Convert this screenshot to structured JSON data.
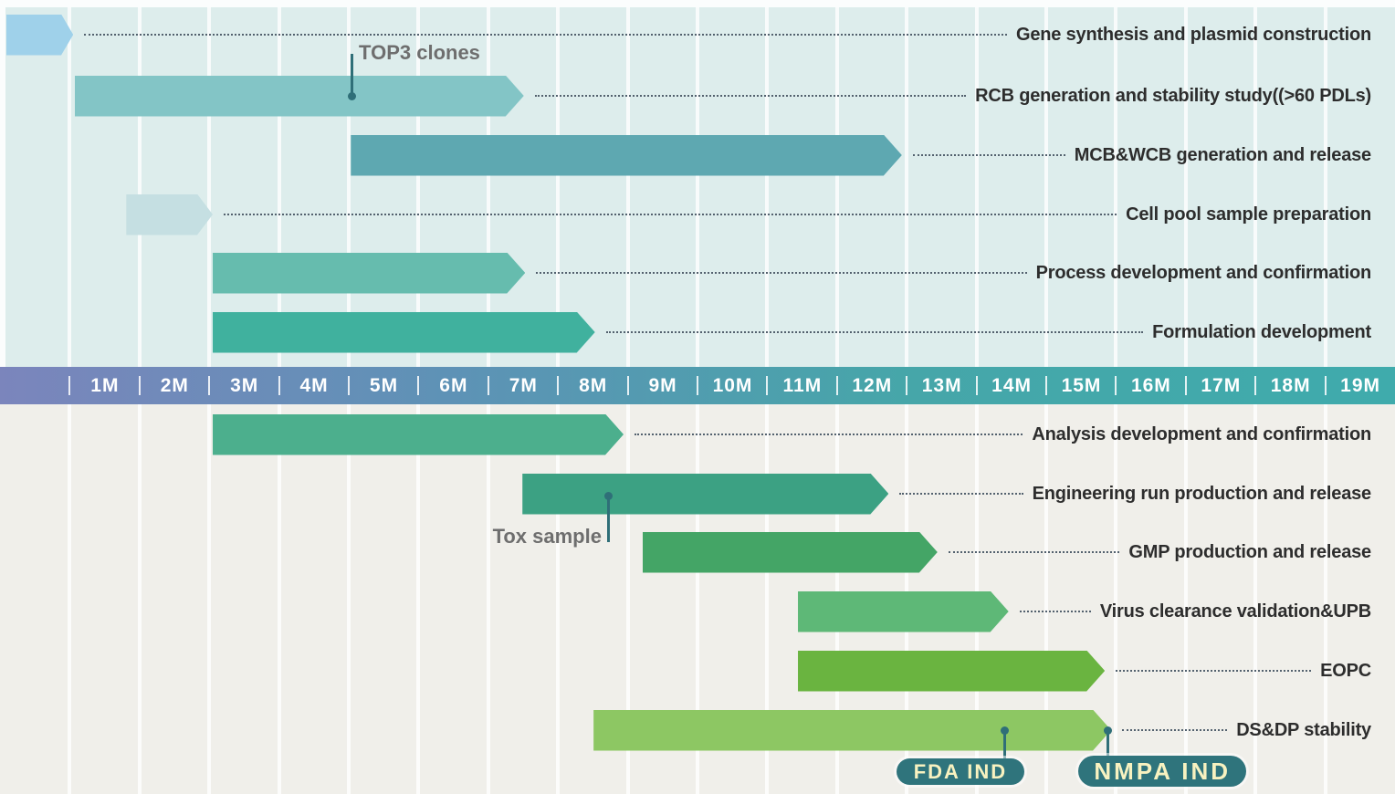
{
  "chart_data": {
    "type": "gantt",
    "unit": "months",
    "axis": {
      "tick_suffix": "M",
      "labels": [
        "1M",
        "2M",
        "3M",
        "4M",
        "5M",
        "6M",
        "7M",
        "8M",
        "9M",
        "10M",
        "11M",
        "12M",
        "13M",
        "14M",
        "15M",
        "16M",
        "17M",
        "18M",
        "19M"
      ],
      "range_months": [
        0,
        20
      ],
      "gridlines": true
    },
    "tasks": [
      {
        "id": "gene-synthesis",
        "label": "Gene synthesis  and  plasmid construction",
        "start": 0.09,
        "end": 1.05,
        "row": 0,
        "color": "#9fd1ea"
      },
      {
        "id": "rcb-generation",
        "label": "RCB generation and stability study((>60 PDLs)",
        "start": 1.07,
        "end": 7.51,
        "row": 1,
        "color": "#83c5c6"
      },
      {
        "id": "mcb-wcb",
        "label": "MCB&WCB generation and release",
        "start": 5.03,
        "end": 12.93,
        "row": 2,
        "color": "#5ea8b1"
      },
      {
        "id": "cell-pool",
        "label": "Cell pool sample preparation",
        "start": 1.81,
        "end": 3.05,
        "row": 3,
        "color": "#c5dfe2"
      },
      {
        "id": "process-dev",
        "label": "Process development and confirmation",
        "start": 3.05,
        "end": 7.53,
        "row": 4,
        "color": "#66bcae"
      },
      {
        "id": "formulation-dev",
        "label": "Formulation development",
        "start": 3.05,
        "end": 8.53,
        "row": 5,
        "color": "#40b19e"
      },
      {
        "id": "analysis-dev",
        "label": "Analysis development and confirmation",
        "start": 3.05,
        "end": 8.94,
        "row": 6,
        "color": "#4caf8d"
      },
      {
        "id": "engineering-run",
        "label": "Engineering run production and release",
        "start": 7.49,
        "end": 12.74,
        "row": 7,
        "color": "#3ca183"
      },
      {
        "id": "gmp-production",
        "label": "GMP production and release",
        "start": 9.21,
        "end": 13.44,
        "row": 8,
        "color": "#44a566"
      },
      {
        "id": "virus-clearance",
        "label": "Virus clearance validation&UPB",
        "start": 11.44,
        "end": 14.46,
        "row": 9,
        "color": "#5eb877"
      },
      {
        "id": "eopc",
        "label": "EOPC",
        "start": 11.44,
        "end": 15.84,
        "row": 10,
        "color": "#6ab440"
      },
      {
        "id": "dsdp-stability",
        "label": "DS&DP stability",
        "start": 8.51,
        "end": 15.93,
        "row": 11,
        "color": "#8dc763"
      }
    ],
    "milestones": [
      {
        "id": "top3-clones",
        "label": "TOP3 clones",
        "month": 5.04,
        "row": 1,
        "style": "callout-up"
      },
      {
        "id": "tox-sample",
        "label": "Tox sample",
        "month": 8.73,
        "row": 7,
        "style": "callout-down"
      },
      {
        "id": "fda-ind",
        "label": "FDA IND",
        "month": 14.41,
        "row": 11,
        "style": "badge",
        "size": "sm",
        "badge_dx": -49,
        "badge_w": 140
      },
      {
        "id": "nmpa-ind",
        "label": "NMPA IND",
        "month": 15.88,
        "row": 11,
        "style": "badge",
        "size": "lg",
        "badge_dx": 60,
        "badge_w": 184
      }
    ]
  },
  "colors": {
    "section_top_bg": "#ddedec",
    "section_bottom_bg": "#f0efea",
    "axis_gradient_left": "#7b85bc",
    "axis_gradient_right": "#3fabac",
    "axis_text": "#ffffff",
    "gridline": "#ffffff",
    "leader_dots": "#53616e",
    "task_label_text": "#2d2d2d",
    "annotation_text": "#6e6e6e",
    "marker_line": "#2f6f78",
    "badge_bg": "#2f747c",
    "badge_text": "#f8f2c0"
  }
}
